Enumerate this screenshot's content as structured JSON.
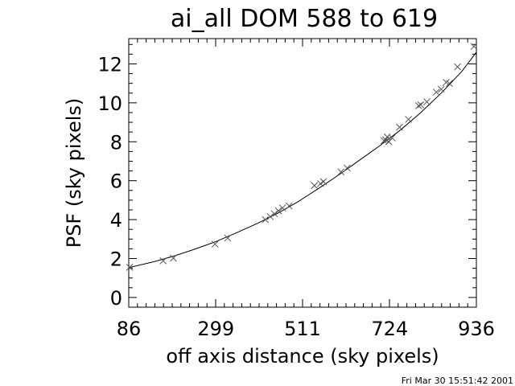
{
  "chart_data": {
    "type": "scatter",
    "title": "ai_all DOM 588 to 619",
    "xlabel": "off axis distance (sky pixels)",
    "ylabel": "PSF (sky pixels)",
    "xlim": [
      86,
      936
    ],
    "ylim": [
      -0.5,
      13.3
    ],
    "x_ticks": [
      86,
      299,
      511,
      724,
      936
    ],
    "x_tick_labels": [
      "86",
      "299",
      "511",
      "724",
      "936"
    ],
    "y_ticks": [
      0,
      2,
      4,
      6,
      8,
      10,
      12
    ],
    "y_tick_labels": [
      "0",
      "2",
      "4",
      "6",
      "8",
      "10",
      "12"
    ],
    "x_minor_step": 21.25,
    "y_minor_step": 0.5,
    "grid": false,
    "legend": "none",
    "series": [
      {
        "type": "scatter",
        "marker": "x",
        "points": [
          [
            88,
            1.55
          ],
          [
            170,
            1.88
          ],
          [
            195,
            2.02
          ],
          [
            297,
            2.74
          ],
          [
            328,
            3.05
          ],
          [
            420,
            4.0
          ],
          [
            432,
            4.15
          ],
          [
            442,
            4.3
          ],
          [
            452,
            4.45
          ],
          [
            462,
            4.6
          ],
          [
            478,
            4.7
          ],
          [
            540,
            5.75
          ],
          [
            555,
            5.85
          ],
          [
            562,
            5.95
          ],
          [
            605,
            6.45
          ],
          [
            620,
            6.65
          ],
          [
            710,
            8.05
          ],
          [
            714,
            8.1
          ],
          [
            718,
            8.25
          ],
          [
            722,
            8.0
          ],
          [
            730,
            8.2
          ],
          [
            748,
            8.75
          ],
          [
            770,
            9.15
          ],
          [
            795,
            9.85
          ],
          [
            800,
            9.9
          ],
          [
            815,
            10.05
          ],
          [
            838,
            10.55
          ],
          [
            850,
            10.7
          ],
          [
            862,
            11.05
          ],
          [
            870,
            11.0
          ],
          [
            890,
            11.85
          ],
          [
            930,
            12.9
          ]
        ]
      },
      {
        "type": "line",
        "points": [
          [
            86,
            1.53
          ],
          [
            150,
            1.85
          ],
          [
            200,
            2.15
          ],
          [
            250,
            2.5
          ],
          [
            300,
            2.88
          ],
          [
            350,
            3.33
          ],
          [
            400,
            3.8
          ],
          [
            450,
            4.32
          ],
          [
            500,
            4.92
          ],
          [
            550,
            5.6
          ],
          [
            600,
            6.3
          ],
          [
            650,
            7.05
          ],
          [
            700,
            7.8
          ],
          [
            750,
            8.6
          ],
          [
            800,
            9.5
          ],
          [
            850,
            10.5
          ],
          [
            900,
            11.6
          ],
          [
            936,
            12.6
          ]
        ]
      }
    ]
  },
  "footer": {
    "timestamp": "Fri Mar 30 15:51:42 2001"
  }
}
